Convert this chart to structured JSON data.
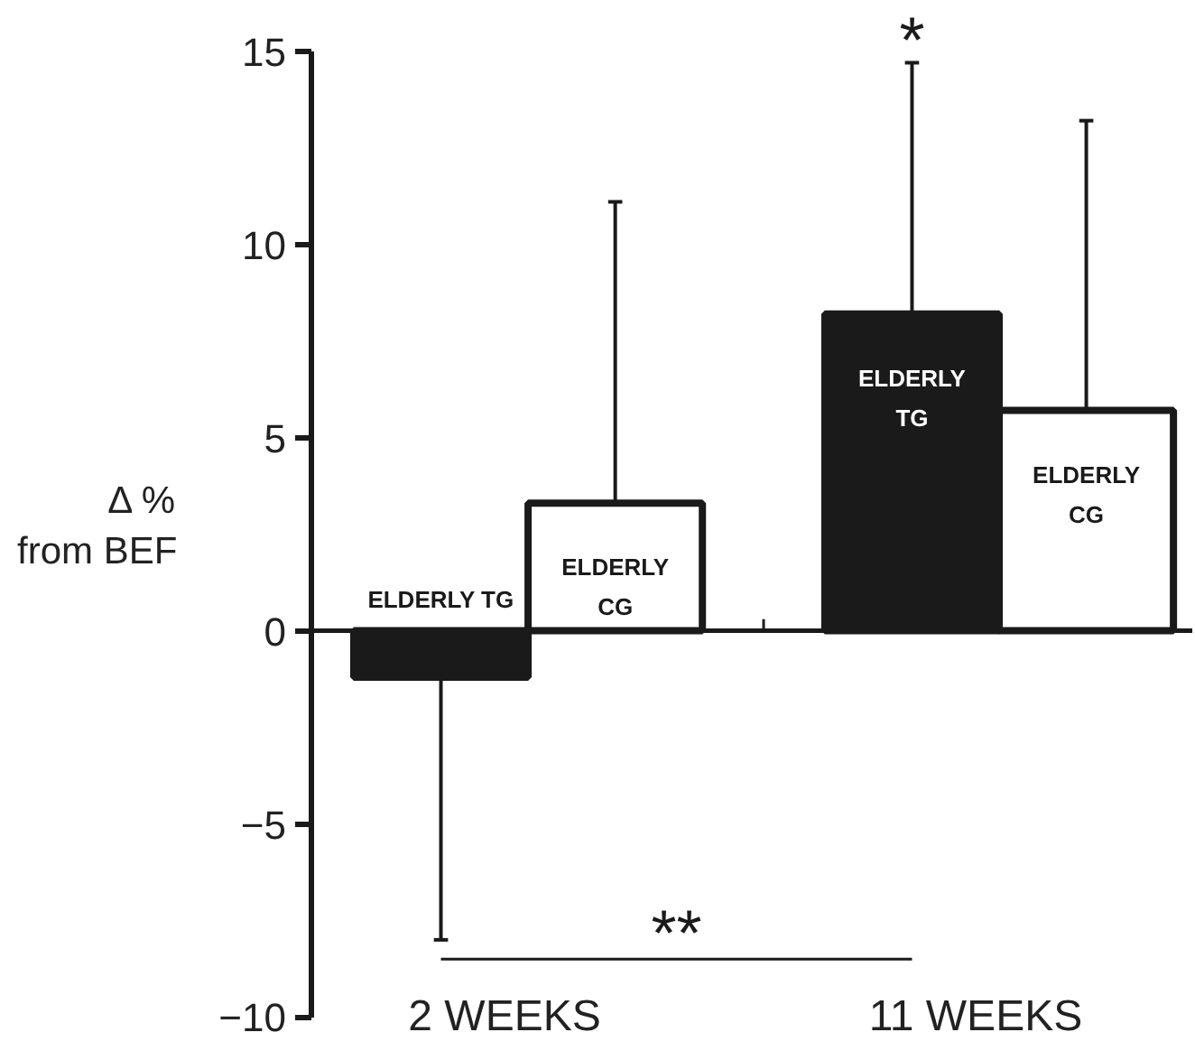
{
  "chart_data": {
    "type": "bar",
    "ylabel": "Δ %\nfrom BEF",
    "categories": [
      "2 WEEKS",
      "11 WEEKS"
    ],
    "series": [
      {
        "name": "ELDERLY TG",
        "color": "#1a1a1a",
        "values": [
          -1.2,
          8.2
        ],
        "errors": [
          [
            -8.0,
            -1.2
          ],
          [
            8.2,
            14.7
          ]
        ]
      },
      {
        "name": "ELDERLY CG",
        "color": "#ffffff",
        "values": [
          3.3,
          5.7
        ],
        "errors": [
          [
            3.3,
            11.1
          ],
          [
            5.7,
            13.2
          ]
        ]
      }
    ],
    "ylim": [
      -10,
      15
    ],
    "yticks": [
      -10,
      -5,
      0,
      5,
      10,
      15
    ],
    "ref_lines": [
      {
        "axis": "y",
        "value": 0
      }
    ],
    "annotations": [
      "*",
      "**"
    ],
    "grid": false,
    "legend": false
  }
}
